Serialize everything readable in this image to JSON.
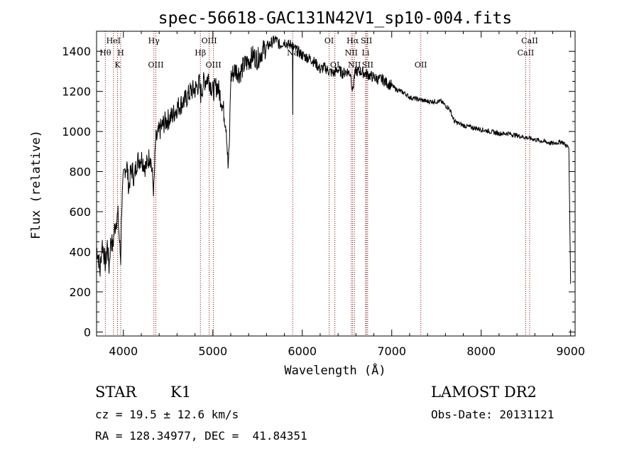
{
  "chart_data": {
    "type": "line",
    "title": "spec-56618-GAC131N42V1_sp10-004.fits",
    "xlabel": "Wavelength (Å)",
    "ylabel": "Flux (relative)",
    "xlim": [
      3700,
      9050
    ],
    "ylim": [
      -20,
      1500
    ],
    "x_ticks": [
      4000,
      5000,
      6000,
      7000,
      8000,
      9000
    ],
    "y_ticks": [
      0,
      200,
      400,
      600,
      800,
      1000,
      1200,
      1400
    ],
    "grid": false,
    "series": [
      {
        "x": [
          3700,
          3720,
          3740,
          3760,
          3780,
          3800,
          3820,
          3840,
          3860,
          3880,
          3900,
          3920,
          3940,
          3960,
          3970,
          3980,
          4000,
          4020,
          4040,
          4060,
          4080,
          4100,
          4120,
          4150,
          4200,
          4250,
          4300,
          4340,
          4360,
          4400,
          4450,
          4500,
          4550,
          4600,
          4650,
          4700,
          4750,
          4800,
          4850,
          4861,
          4900,
          4950,
          5000,
          5050,
          5100,
          5150,
          5170,
          5183,
          5200,
          5250,
          5300,
          5350,
          5400,
          5450,
          5500,
          5550,
          5600,
          5650,
          5700,
          5750,
          5800,
          5850,
          5890,
          5893,
          5896,
          5950,
          6000,
          6050,
          6100,
          6150,
          6200,
          6250,
          6300,
          6350,
          6400,
          6450,
          6500,
          6540,
          6563,
          6580,
          6600,
          6650,
          6700,
          6750,
          6800,
          6850,
          6900,
          6950,
          7000,
          7050,
          7100,
          7150,
          7200,
          7300,
          7400,
          7500,
          7550,
          7600,
          7650,
          7700,
          7800,
          7900,
          8000,
          8100,
          8200,
          8300,
          8400,
          8500,
          8600,
          8700,
          8800,
          8900,
          8950,
          8980,
          9000
        ],
        "y": [
          420,
          380,
          300,
          450,
          400,
          330,
          440,
          320,
          470,
          420,
          510,
          560,
          580,
          420,
          360,
          620,
          760,
          820,
          830,
          720,
          790,
          810,
          760,
          850,
          870,
          820,
          890,
          700,
          950,
          1000,
          1040,
          1060,
          1080,
          1120,
          1140,
          1160,
          1200,
          1210,
          1240,
          1180,
          1250,
          1270,
          1200,
          1230,
          1150,
          1030,
          820,
          900,
          1270,
          1310,
          1290,
          1330,
          1350,
          1380,
          1360,
          1400,
          1420,
          1440,
          1460,
          1430,
          1450,
          1430,
          1440,
          1100,
          1420,
          1400,
          1380,
          1370,
          1360,
          1340,
          1310,
          1320,
          1300,
          1290,
          1310,
          1290,
          1300,
          1290,
          1200,
          1270,
          1300,
          1300,
          1290,
          1280,
          1270,
          1260,
          1260,
          1240,
          1230,
          1210,
          1200,
          1190,
          1170,
          1160,
          1150,
          1150,
          1150,
          1130,
          1110,
          1050,
          1030,
          1020,
          1010,
          1000,
          990,
          990,
          980,
          970,
          960,
          950,
          940,
          950,
          930,
          920,
          240
        ]
      }
    ],
    "lines": [
      {
        "name": "HeI",
        "x": 3889,
        "row": 0
      },
      {
        "name": "Hθ",
        "x": 3798,
        "row": 1
      },
      {
        "name": "H",
        "x": 3970,
        "row": 1
      },
      {
        "name": "K",
        "x": 3934,
        "row": 2
      },
      {
        "name": "Hγ",
        "x": 4341,
        "row": 0
      },
      {
        "name": "OIII",
        "x": 4363,
        "row": 2
      },
      {
        "name": "OIII",
        "x": 4959,
        "row": 0
      },
      {
        "name": "Hβ",
        "x": 4861,
        "row": 1
      },
      {
        "name": "OIII",
        "x": 5007,
        "row": 2
      },
      {
        "name": "Na",
        "x": 5893,
        "row": 1
      },
      {
        "name": "OI",
        "x": 6300,
        "row": 0
      },
      {
        "name": "OI",
        "x": 6364,
        "row": 2
      },
      {
        "name": "Hα",
        "x": 6563,
        "row": 0
      },
      {
        "name": "SII",
        "x": 6717,
        "row": 0
      },
      {
        "name": "NII",
        "x": 6548,
        "row": 1
      },
      {
        "name": "Li",
        "x": 6708,
        "row": 1
      },
      {
        "name": "NII",
        "x": 6583,
        "row": 2
      },
      {
        "name": "SII",
        "x": 6731,
        "row": 2
      },
      {
        "name": "OII",
        "x": 7325,
        "row": 2
      },
      {
        "name": "CaII",
        "x": 8542,
        "row": 0
      },
      {
        "name": "CaII",
        "x": 8498,
        "row": 1
      }
    ]
  },
  "info": {
    "class": "STAR",
    "subclass": "K1",
    "survey": "LAMOST DR2",
    "cz": "cz = 19.5 ± 12.6 km/s",
    "obsdate": "Obs-Date: 20131121",
    "radec": "RA = 128.34977, DEC =  41.84351"
  }
}
